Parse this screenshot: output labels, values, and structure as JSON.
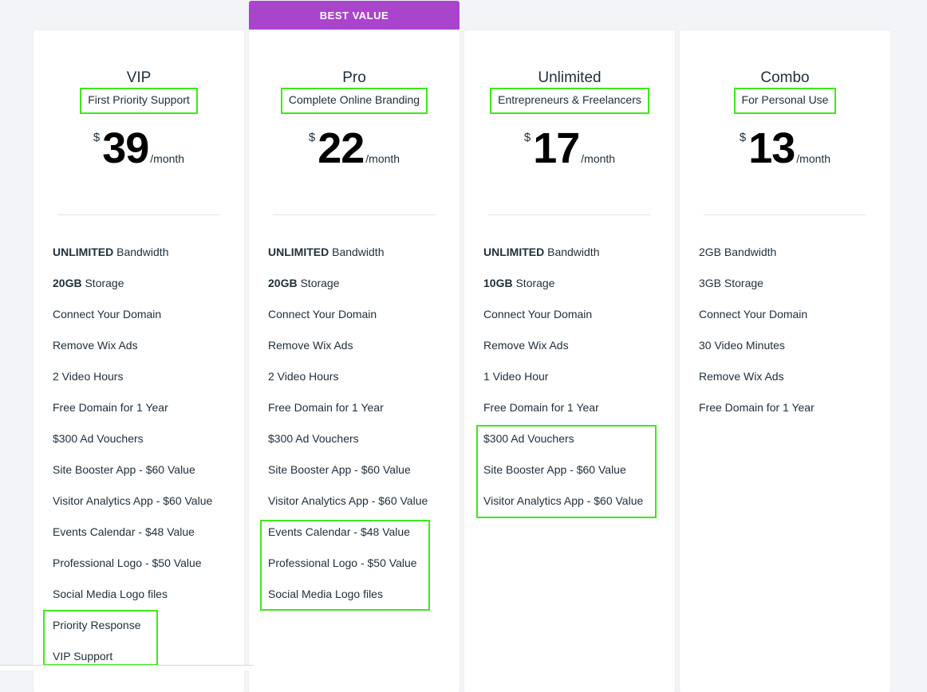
{
  "banner": {
    "label": "BEST VALUE"
  },
  "plans": [
    {
      "name": "VIP",
      "tagline": "First Priority Support",
      "currency": "$",
      "price": "39",
      "period": "/month",
      "features": [
        {
          "bold": "UNLIMITED",
          "text": " Bandwidth"
        },
        {
          "bold": "20GB",
          "text": " Storage"
        },
        {
          "bold": "",
          "text": "Connect Your Domain"
        },
        {
          "bold": "",
          "text": "Remove Wix Ads"
        },
        {
          "bold": "",
          "text": "2 Video Hours"
        },
        {
          "bold": "",
          "text": "Free Domain for 1 Year"
        },
        {
          "bold": "",
          "text": "$300 Ad Vouchers"
        },
        {
          "bold": "",
          "text": "Site Booster App - $60 Value"
        },
        {
          "bold": "",
          "text": "Visitor Analytics App - $60 Value"
        },
        {
          "bold": "",
          "text": "Events Calendar - $48 Value"
        },
        {
          "bold": "",
          "text": "Professional Logo - $50 Value"
        },
        {
          "bold": "",
          "text": "Social Media Logo files"
        },
        {
          "bold": "",
          "text": "Priority Response"
        },
        {
          "bold": "",
          "text": "VIP Support"
        }
      ]
    },
    {
      "name": "Pro",
      "tagline": "Complete Online Branding",
      "currency": "$",
      "price": "22",
      "period": "/month",
      "features": [
        {
          "bold": "UNLIMITED",
          "text": " Bandwidth"
        },
        {
          "bold": "20GB",
          "text": " Storage"
        },
        {
          "bold": "",
          "text": "Connect Your Domain"
        },
        {
          "bold": "",
          "text": "Remove Wix Ads"
        },
        {
          "bold": "",
          "text": "2 Video Hours"
        },
        {
          "bold": "",
          "text": "Free Domain for 1 Year"
        },
        {
          "bold": "",
          "text": "$300 Ad Vouchers"
        },
        {
          "bold": "",
          "text": "Site Booster App - $60 Value"
        },
        {
          "bold": "",
          "text": "Visitor Analytics App - $60 Value"
        },
        {
          "bold": "",
          "text": "Events Calendar - $48 Value"
        },
        {
          "bold": "",
          "text": "Professional Logo - $50 Value"
        },
        {
          "bold": "",
          "text": "Social Media Logo files"
        }
      ]
    },
    {
      "name": "Unlimited",
      "tagline": "Entrepreneurs & Freelancers",
      "currency": "$",
      "price": "17",
      "period": "/month",
      "features": [
        {
          "bold": "UNLIMITED",
          "text": " Bandwidth"
        },
        {
          "bold": "10GB",
          "text": " Storage"
        },
        {
          "bold": "",
          "text": "Connect Your Domain"
        },
        {
          "bold": "",
          "text": "Remove Wix Ads"
        },
        {
          "bold": "",
          "text": "1 Video Hour"
        },
        {
          "bold": "",
          "text": "Free Domain for 1 Year"
        },
        {
          "bold": "",
          "text": "$300 Ad Vouchers"
        },
        {
          "bold": "",
          "text": "Site Booster App - $60 Value"
        },
        {
          "bold": "",
          "text": "Visitor Analytics App - $60 Value"
        }
      ]
    },
    {
      "name": "Combo",
      "tagline": "For Personal Use",
      "currency": "$",
      "price": "13",
      "period": "/month",
      "features": [
        {
          "bold": "",
          "text": "2GB Bandwidth"
        },
        {
          "bold": "",
          "text": "3GB Storage"
        },
        {
          "bold": "",
          "text": "Connect Your Domain"
        },
        {
          "bold": "",
          "text": "30 Video Minutes"
        },
        {
          "bold": "",
          "text": "Remove Wix Ads"
        },
        {
          "bold": "",
          "text": "Free Domain for 1 Year"
        }
      ]
    }
  ],
  "highlight_color": "#3ee81a",
  "banner_color": "#ab44cc"
}
